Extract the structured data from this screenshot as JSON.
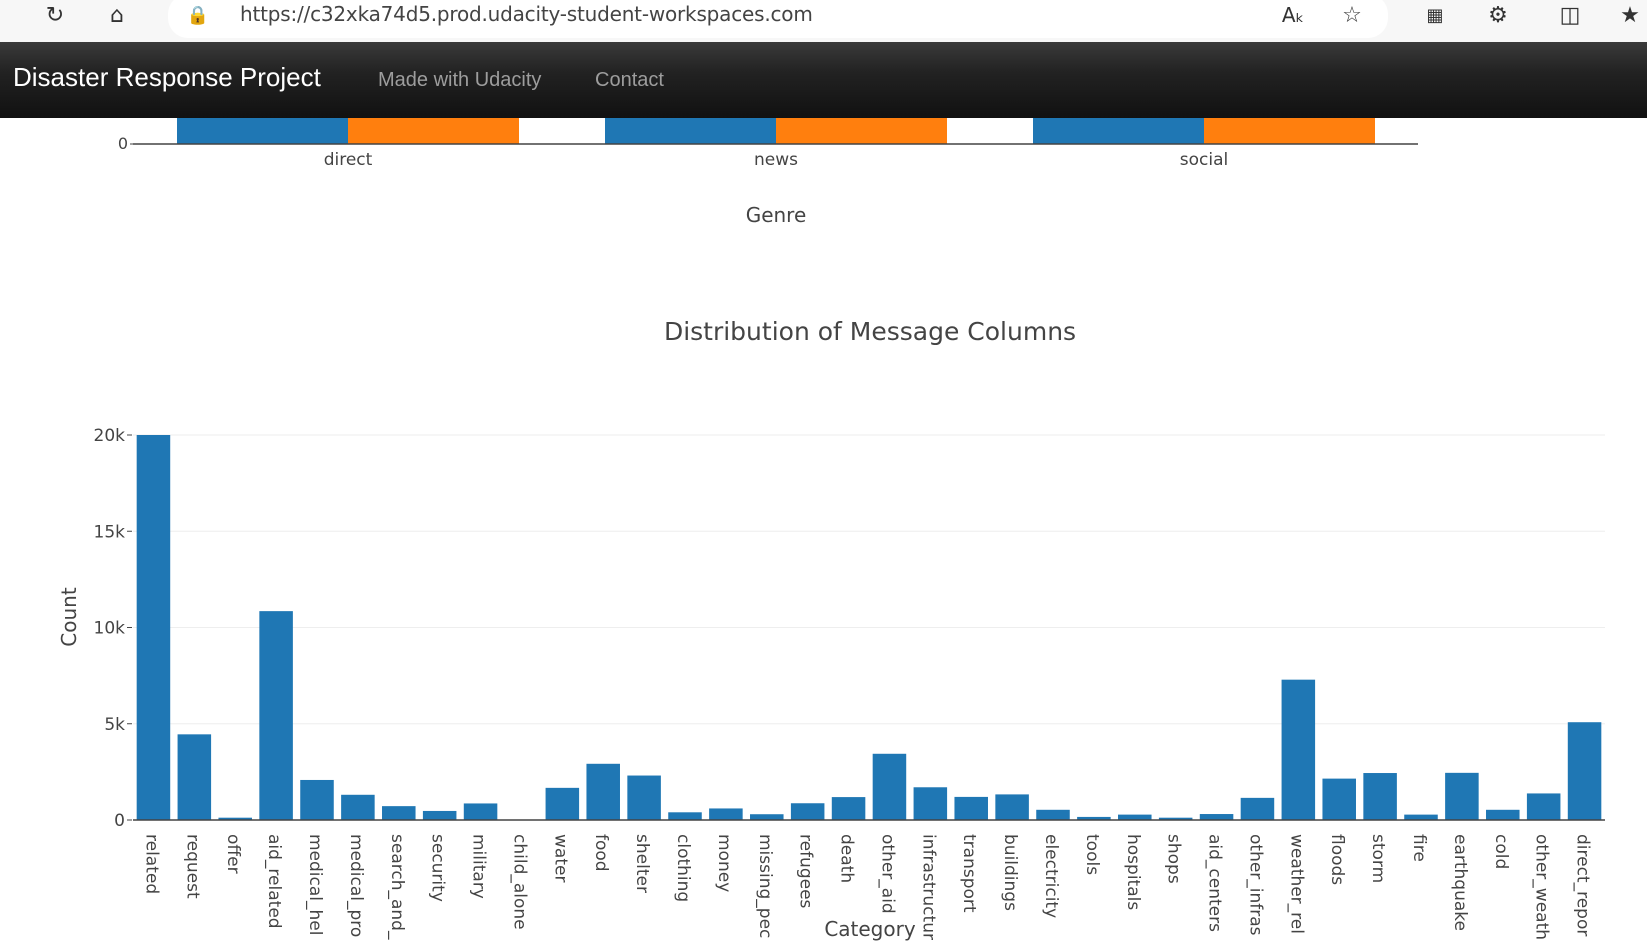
{
  "browser": {
    "url": "https://c32xka74d5.prod.udacity-student-workspaces.com",
    "icons": [
      "reload-icon",
      "home-icon",
      "lock-icon",
      "read-aloud-icon",
      "favorite-star-icon",
      "qr-code-icon",
      "extensions-icon",
      "split-screen-icon",
      "favorites-icon"
    ]
  },
  "navbar": {
    "brand": "Disaster Response Project",
    "links": [
      "Made with Udacity",
      "Contact"
    ],
    "background": "#222222"
  },
  "chart_data": [
    {
      "type": "bar",
      "visible_portion": "bottom of chart",
      "categories": [
        "direct",
        "news",
        "social"
      ],
      "xlabel": "Genre",
      "yticks_visible": [
        "0"
      ],
      "series_colors": [
        "#1f77b4",
        "#ff7f0e"
      ]
    },
    {
      "type": "bar",
      "title": "Distribution of Message Columns",
      "xlabel": "Category",
      "ylabel": "Count",
      "ylim": [
        0,
        20000
      ],
      "yticks": [
        0,
        5000,
        10000,
        15000,
        20000
      ],
      "ytick_labels": [
        "0",
        "5k",
        "10k",
        "15k",
        "20k"
      ],
      "color": "#1f77b4",
      "grid": true,
      "categories": [
        "related",
        "request",
        "offer",
        "aid_related",
        "medical_help",
        "medical_products",
        "search_and_rescue",
        "security",
        "military",
        "child_alone",
        "water",
        "food",
        "shelter",
        "clothing",
        "money",
        "missing_people",
        "refugees",
        "death",
        "other_aid",
        "infrastructure_related",
        "transport",
        "buildings",
        "electricity",
        "tools",
        "hospitals",
        "shops",
        "aid_centers",
        "other_infrastructure",
        "weather_related",
        "floods",
        "storm",
        "fire",
        "earthquake",
        "cold",
        "other_weather",
        "direct_report"
      ],
      "tick_labels": [
        "related",
        "request",
        "offer",
        "aid_related",
        "medical_hel",
        "medical_pro",
        "search_and_",
        "security",
        "military",
        "child_alone",
        "water",
        "food",
        "shelter",
        "clothing",
        "money",
        "missing_pec",
        "refugees",
        "death",
        "other_aid",
        "infrastructur",
        "transport",
        "buildings",
        "electricity",
        "tools",
        "hospitals",
        "shops",
        "aid_centers",
        "other_infras",
        "weather_rel",
        "floods",
        "storm",
        "fire",
        "earthquake",
        "cold",
        "other_weath",
        "direct_repor"
      ],
      "values": [
        20000,
        4450,
        120,
        10850,
        2080,
        1310,
        720,
        470,
        860,
        0,
        1670,
        2920,
        2310,
        400,
        600,
        300,
        870,
        1190,
        3440,
        1700,
        1200,
        1330,
        530,
        160,
        280,
        120,
        310,
        1150,
        7290,
        2150,
        2440,
        280,
        2450,
        530,
        1380,
        5080
      ]
    }
  ]
}
